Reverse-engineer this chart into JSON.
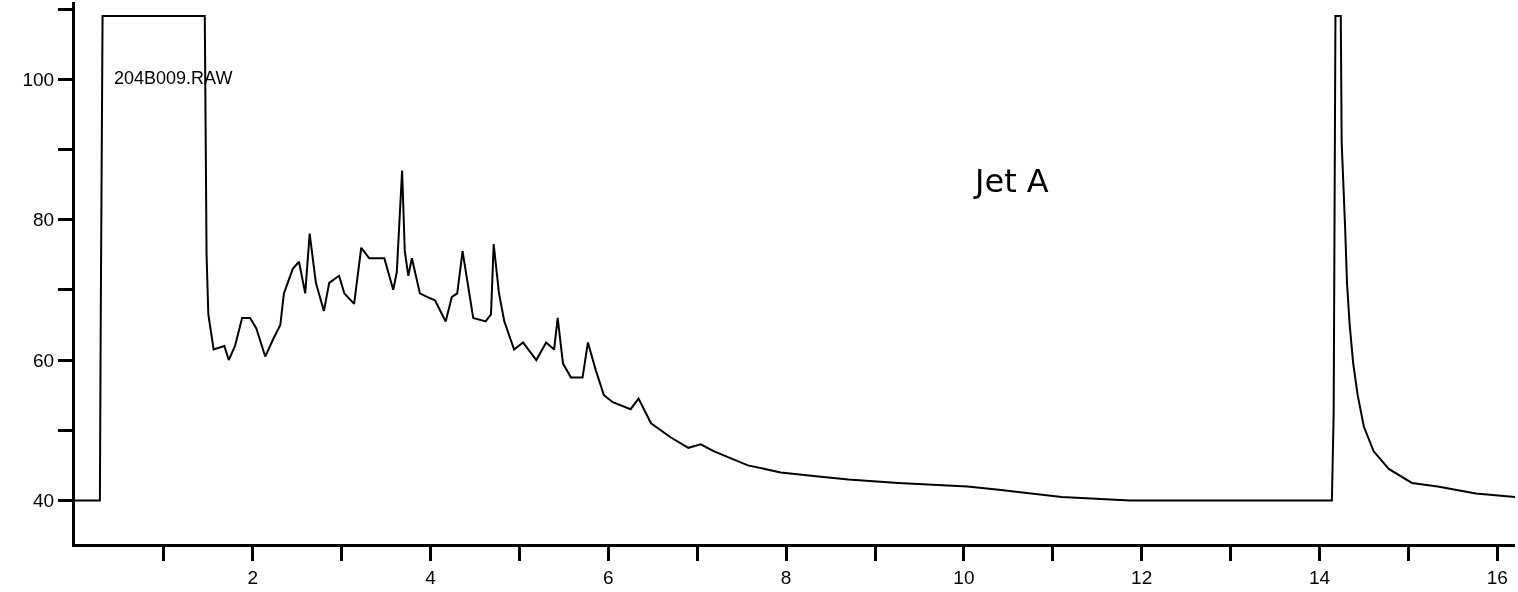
{
  "chart_data": {
    "type": "line",
    "annotations": [
      "204B009.RAW",
      "Jet A"
    ],
    "x": [
      0,
      0.28,
      0.29,
      0.31,
      1.46,
      1.48,
      1.5,
      1.56,
      1.68,
      1.73,
      1.8,
      1.88,
      1.97,
      2.04,
      2.14,
      2.23,
      2.31,
      2.35,
      2.45,
      2.52,
      2.59,
      2.64,
      2.71,
      2.8,
      2.86,
      2.97,
      3.03,
      3.14,
      3.18,
      3.22,
      3.31,
      3.48,
      3.58,
      3.62,
      3.68,
      3.71,
      3.75,
      3.79,
      3.88,
      3.96,
      4.05,
      4.17,
      4.24,
      4.3,
      4.36,
      4.48,
      4.62,
      4.68,
      4.71,
      4.77,
      4.83,
      4.94,
      5.04,
      5.19,
      5.3,
      5.39,
      5.43,
      5.49,
      5.58,
      5.71,
      5.77,
      5.86,
      5.95,
      6.05,
      6.25,
      6.34,
      6.48,
      6.7,
      6.9,
      7.04,
      7.19,
      7.57,
      7.94,
      8.31,
      8.7,
      9.26,
      10.04,
      10.42,
      11.1,
      11.87,
      14.14,
      14.16,
      14.18,
      14.24,
      14.25,
      14.29,
      14.31,
      14.34,
      14.38,
      14.43,
      14.5,
      14.61,
      14.78,
      15.04,
      15.33,
      15.76,
      16.2
    ],
    "series": [
      {
        "color": "#000000",
        "values": [
          40,
          40,
          67,
          109,
          109,
          75,
          66.5,
          61.5,
          62,
          60,
          62,
          66,
          66,
          64.5,
          60.5,
          63,
          65,
          69.5,
          73,
          74,
          69.5,
          78,
          71,
          67,
          71,
          72,
          69.5,
          68,
          72,
          76,
          74.5,
          74.5,
          70,
          72.5,
          87,
          75.5,
          72,
          74.5,
          69.5,
          69,
          68.5,
          65.5,
          69,
          69.5,
          75.5,
          66,
          65.5,
          66.5,
          76.5,
          69.5,
          65.5,
          61.5,
          62.5,
          60,
          62.5,
          61.5,
          66,
          59.5,
          57.5,
          57.5,
          62.5,
          58.5,
          55,
          54,
          53,
          54.5,
          51,
          49,
          47.5,
          48,
          47,
          45,
          44,
          43.5,
          43,
          42.5,
          42,
          41.5,
          40.5,
          40,
          40,
          52.5,
          109,
          109,
          91,
          78.5,
          71,
          65,
          59.5,
          55,
          50.5,
          47,
          44.5,
          42.5,
          42,
          41,
          40.5
        ]
      }
    ],
    "xlim": [
      0,
      16.2
    ],
    "xticks": [
      {
        "value": 1,
        "label": null
      },
      2,
      {
        "value": 3,
        "label": null
      },
      4,
      {
        "value": 5,
        "label": null
      },
      6,
      {
        "value": 7,
        "label": null
      },
      8,
      {
        "value": 9,
        "label": null
      },
      10,
      {
        "value": 11,
        "label": null
      },
      12,
      {
        "value": 13,
        "label": null
      },
      14,
      {
        "value": 15,
        "label": null
      },
      16
    ],
    "ylim": [
      33.8,
      111
    ],
    "yticks": [
      40,
      {
        "value": 50,
        "label": null
      },
      60,
      {
        "value": 70,
        "label": null
      },
      80,
      {
        "value": 90,
        "label": null
      },
      100,
      {
        "value": 110,
        "label": null
      }
    ],
    "marker": "none",
    "line_style": "solid"
  }
}
